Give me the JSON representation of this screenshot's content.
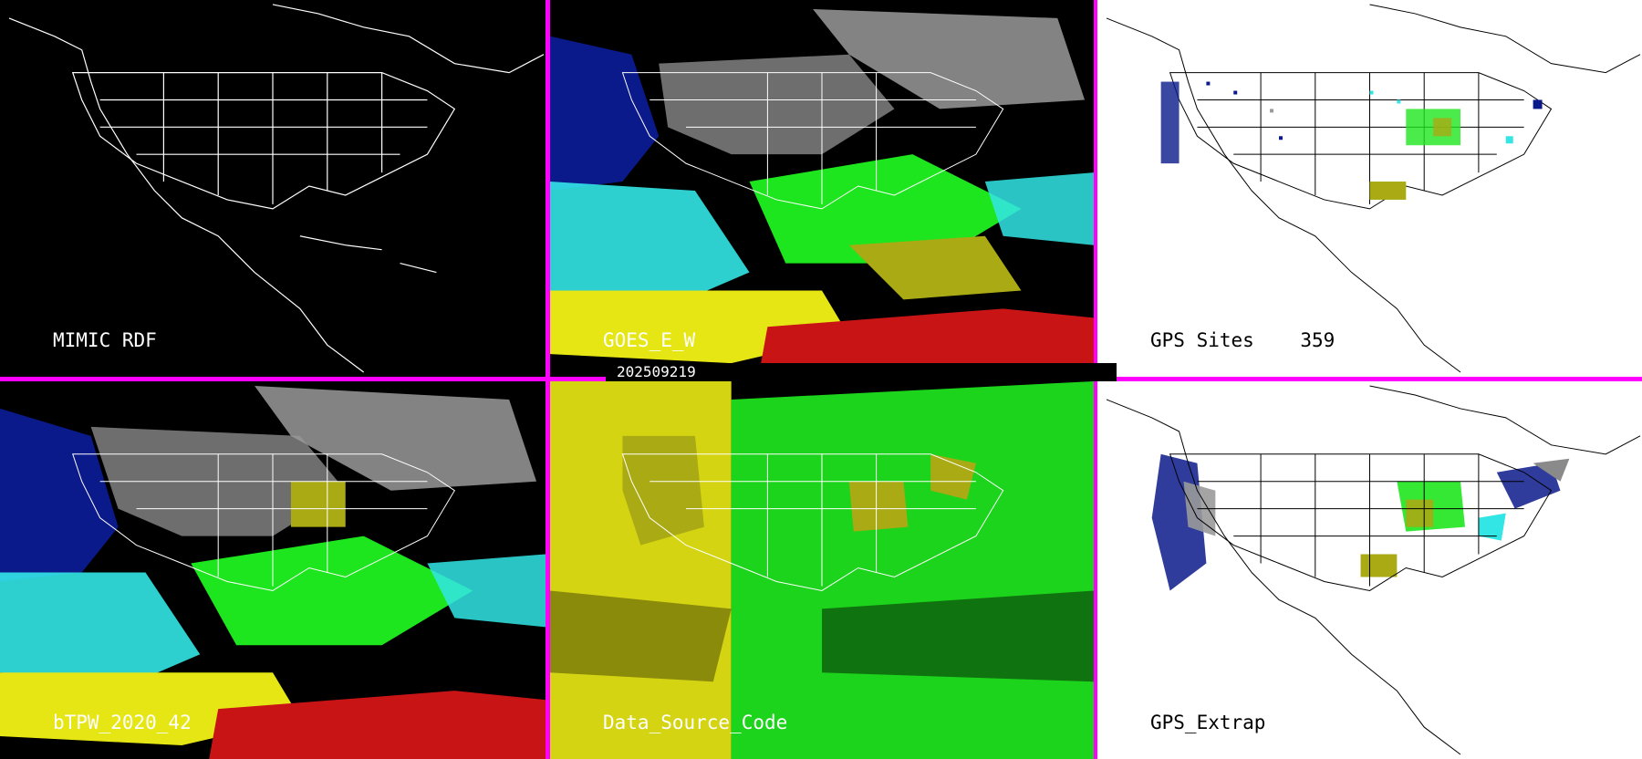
{
  "panels": [
    {
      "label": "MIMIC RDF"
    },
    {
      "label": "GOES_E_W"
    },
    {
      "label": "GPS Sites    359"
    },
    {
      "label": "bTPW_2020_42"
    },
    {
      "label": "Data_Source_Code"
    },
    {
      "label": "GPS_Extrap"
    }
  ],
  "timestamp": "202509219",
  "colors": {
    "divider": "#ff00ff",
    "dark_navy": "#0a1a8a",
    "blue": "#1e3cff",
    "cyan": "#32e6e6",
    "green": "#1ee61e",
    "olive": "#aaaa14",
    "yellow": "#e6e614",
    "red": "#c81414",
    "gray": "#9a9a9a"
  }
}
